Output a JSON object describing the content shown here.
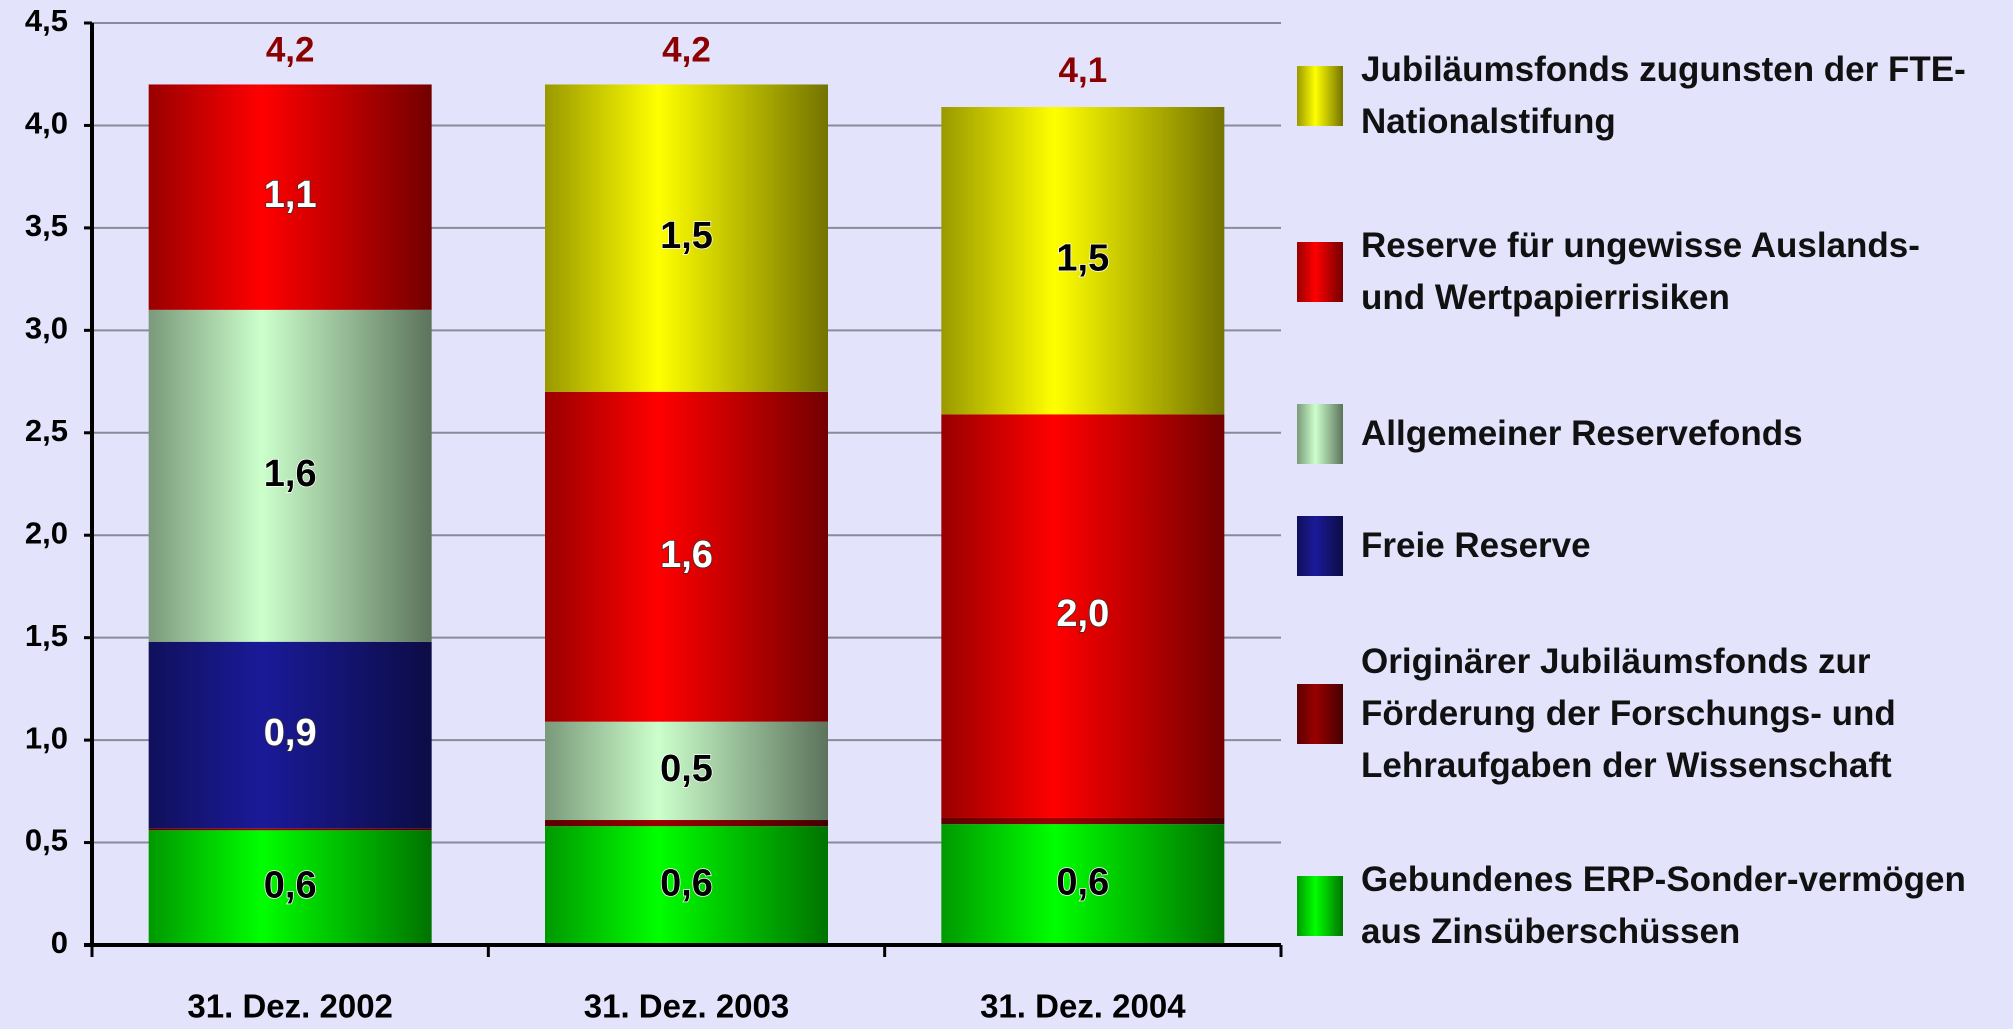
{
  "chart_data": {
    "type": "stacked_bar",
    "categories": [
      "31. Dez. 2002",
      "31. Dez. 2003",
      "31. Dez. 2004"
    ],
    "series": [
      {
        "name": "Gebundenes ERP-Sonder-vermögen aus Zinsüberschüssen",
        "color": "#00ff00",
        "values": [
          0.56,
          0.58,
          0.59
        ],
        "value_labels": [
          "0,6",
          "0,6",
          "0,6"
        ]
      },
      {
        "name": "Originärer Jubiläumsfonds zur Förderung der Forschungs- und Lehraufgaben der Wissenschaft",
        "color": "#990000",
        "values": [
          0.01,
          0.03,
          0.03
        ],
        "value_labels": [
          null,
          null,
          null
        ]
      },
      {
        "name": "Freie Reserve",
        "color": "#1a1a99",
        "values": [
          0.91,
          0,
          0
        ],
        "value_labels": [
          "0,9",
          null,
          null
        ]
      },
      {
        "name": "Allgemeiner Reservefonds",
        "color": "#ccffcc",
        "values": [
          1.62,
          0.48,
          0
        ],
        "value_labels": [
          "1,6",
          "0,5",
          null
        ]
      },
      {
        "name": "Reserve für ungewisse Auslands- und Wertpapierrisiken",
        "color": "#ff0000",
        "values": [
          1.1,
          1.61,
          1.97
        ],
        "value_labels": [
          "1,1",
          "1,6",
          "2,0"
        ]
      },
      {
        "name": "Jubiläumsfonds zugunsten der FTE-Nationalstifung",
        "color": "#ffff00",
        "values": [
          0,
          1.5,
          1.5
        ],
        "value_labels": [
          null,
          "1,5",
          "1,5"
        ]
      }
    ],
    "totals": [
      4.2,
      4.2,
      4.1
    ],
    "total_labels": [
      "4,2",
      "4,2",
      "4,1"
    ],
    "total_color": "#8b0000",
    "ylim": [
      0,
      4.5
    ],
    "yticks": [
      0,
      {
        "value": 0.5,
        "label": "0,5"
      },
      {
        "value": 1,
        "label": "1,0"
      },
      {
        "value": 1.5,
        "label": "1,5"
      },
      {
        "value": 2,
        "label": "2,0"
      },
      {
        "value": 2.5,
        "label": "2,5"
      },
      {
        "value": 3,
        "label": "3,0"
      },
      {
        "value": 3.5,
        "label": "3,5"
      },
      {
        "value": 4,
        "label": "4,0"
      },
      {
        "value": 4.5,
        "label": "4,5"
      }
    ],
    "grid": true
  }
}
